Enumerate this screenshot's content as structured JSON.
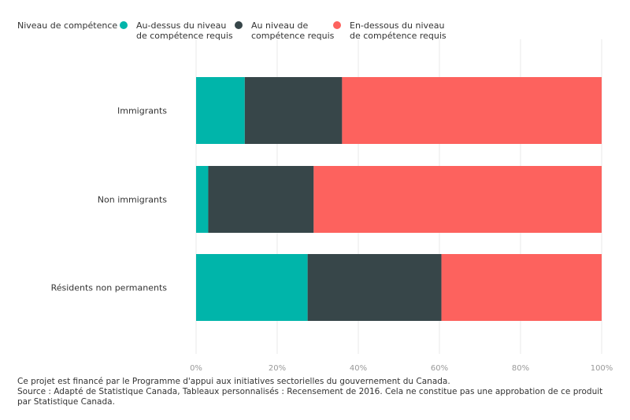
{
  "chart_data": {
    "type": "bar",
    "orientation": "horizontal",
    "stacked": true,
    "legend_title": "Niveau de compétence :",
    "legend_placement": "top-left",
    "categories": [
      "Immigrants",
      "Non immigrants",
      "Résidents non permanents"
    ],
    "series": [
      {
        "name": "Au-dessus du niveau\nde compétence requis",
        "color": "#00b5aa",
        "values": [
          12,
          3,
          27.5
        ]
      },
      {
        "name": "Au niveau de\ncompétence requis",
        "color": "#374649",
        "values": [
          24,
          26,
          33
        ]
      },
      {
        "name": "En-dessous du niveau\nde compétence requis",
        "color": "#fd625e",
        "values": [
          64,
          71,
          39.5
        ]
      }
    ],
    "xlim": [
      0,
      100
    ],
    "xticks": [
      "0%",
      "20%",
      "40%",
      "60%",
      "80%",
      "100%"
    ],
    "xtick_values": [
      0,
      20,
      40,
      60,
      80,
      100
    ],
    "grid": true
  },
  "footer": {
    "line1": "Ce projet est financé par le Programme d'appui aux initiatives sectorielles du gouvernement du Canada.",
    "line2": "Source : Adapté de Statistique Canada, Tableaux personnalisés : Recensement de 2016. Cela ne constitue pas une approbation de ce produit par Statistique Canada."
  }
}
